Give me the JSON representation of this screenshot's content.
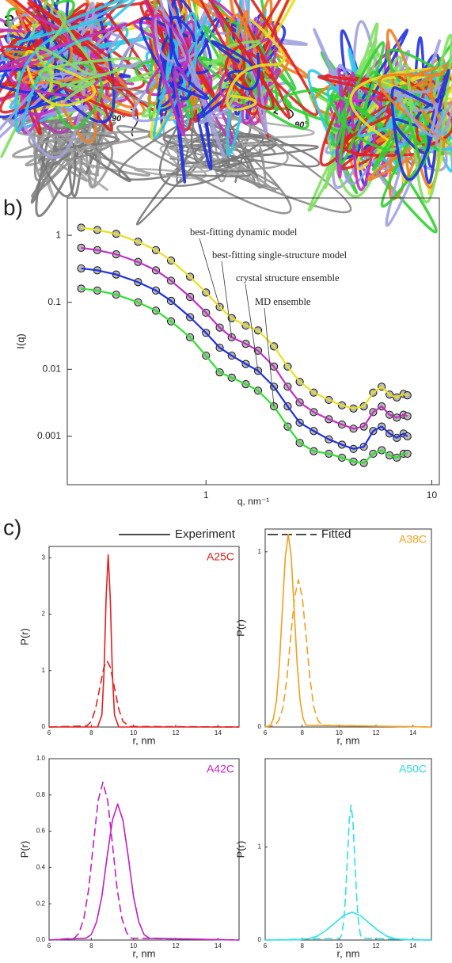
{
  "panel_labels": [
    "a)",
    "b)",
    "c)"
  ],
  "panel_a": {
    "rotation_labels": [
      "90°",
      "90°"
    ]
  },
  "panel_c_legend": [
    {
      "label": "Experiment",
      "style": "solid"
    },
    {
      "label": "Fitted",
      "style": "dashed"
    }
  ],
  "chart_data": [
    {
      "type": "line",
      "log_x": true,
      "log_y": true,
      "markers": true,
      "x_label": "q, nm⁻¹",
      "y_label": "I(q)",
      "xlim": [
        0.243,
        10.8
      ],
      "ylim": [
        0.00019,
        3.6
      ],
      "xticks": [
        1,
        10
      ],
      "yticks": [
        0.001,
        0.01,
        0.1,
        1
      ],
      "x": [
        0.28,
        0.33,
        0.4,
        0.5,
        0.6,
        0.7,
        0.85,
        1.0,
        1.15,
        1.3,
        1.5,
        1.7,
        2.0,
        2.3,
        2.6,
        3.0,
        3.5,
        4.0,
        4.5,
        5.0,
        5.5,
        6.0,
        6.5,
        7.0,
        7.5,
        7.8
      ],
      "series": [
        {
          "name": "best-fitting dynamic model",
          "color": "#e8e020",
          "values": [
            1.3,
            1.2,
            1.05,
            0.8,
            0.6,
            0.42,
            0.24,
            0.14,
            0.085,
            0.058,
            0.045,
            0.038,
            0.022,
            0.011,
            0.0065,
            0.0045,
            0.0035,
            0.0029,
            0.0026,
            0.0028,
            0.0045,
            0.0055,
            0.0042,
            0.0038,
            0.0043,
            0.0041
          ]
        },
        {
          "name": "best-fitting single-structure model",
          "color": "#c030c0",
          "values": [
            0.65,
            0.6,
            0.52,
            0.4,
            0.3,
            0.21,
            0.12,
            0.07,
            0.042,
            0.03,
            0.024,
            0.019,
            0.011,
            0.0055,
            0.0032,
            0.0023,
            0.0018,
            0.0015,
            0.0013,
            0.0014,
            0.0023,
            0.0028,
            0.0021,
            0.0019,
            0.0021,
            0.002
          ]
        },
        {
          "name": "crystal structure ensemble",
          "color": "#2030e0",
          "values": [
            0.32,
            0.3,
            0.26,
            0.2,
            0.15,
            0.105,
            0.06,
            0.035,
            0.021,
            0.016,
            0.012,
            0.0095,
            0.0055,
            0.0028,
            0.0016,
            0.0012,
            0.0009,
            0.00075,
            0.00065,
            0.0007,
            0.0012,
            0.0014,
            0.0011,
            0.00095,
            0.0011,
            0.001
          ]
        },
        {
          "name": "MD ensemble",
          "color": "#30e030",
          "values": [
            0.16,
            0.15,
            0.13,
            0.1,
            0.075,
            0.052,
            0.03,
            0.016,
            0.009,
            0.0075,
            0.006,
            0.0048,
            0.0028,
            0.0014,
            0.0008,
            0.0006,
            0.00055,
            0.00048,
            0.00042,
            0.0004,
            0.00055,
            0.00062,
            0.00052,
            0.00048,
            0.00055,
            0.00055
          ]
        }
      ]
    },
    {
      "type": "line",
      "title": "A25C",
      "title_color": "#e02020",
      "x_label": "r, nm",
      "y_label": "P(r)",
      "xlim": [
        6,
        15
      ],
      "ylim": [
        0,
        3.2
      ],
      "xticks": [
        6,
        8,
        10,
        12,
        14
      ],
      "yticks": [
        0,
        1,
        2,
        3
      ],
      "series": [
        {
          "style": "solid",
          "color": "#e02020",
          "x": [
            6,
            8.3,
            8.5,
            8.6,
            8.7,
            8.8,
            8.9,
            9.0,
            9.1,
            9.3,
            15
          ],
          "values": [
            0,
            0,
            0.21,
            0.94,
            2.27,
            3.05,
            2.27,
            0.94,
            0.21,
            0,
            0
          ]
        },
        {
          "style": "dashed",
          "color": "#e02020",
          "x": [
            6,
            7.8,
            8.0,
            8.2,
            8.4,
            8.6,
            8.75,
            8.9,
            9.1,
            9.3,
            9.5,
            9.8,
            15
          ],
          "values": [
            0,
            0.02,
            0.1,
            0.32,
            0.69,
            1.06,
            1.17,
            1.06,
            0.69,
            0.32,
            0.1,
            0.01,
            0
          ]
        }
      ]
    },
    {
      "type": "line",
      "title": "A38C",
      "title_color": "#f0a020",
      "x_label": "r, nm",
      "y_label": "P(r)",
      "xlim": [
        6,
        15
      ],
      "ylim": [
        0,
        1.13
      ],
      "xticks": [
        6,
        8,
        10,
        12,
        14
      ],
      "yticks": [
        0,
        1
      ],
      "series": [
        {
          "style": "solid",
          "color": "#f0a020",
          "x": [
            6,
            6.29,
            6.45,
            6.61,
            6.77,
            6.93,
            7.09,
            7.25,
            7.41,
            7.57,
            7.73,
            7.89,
            8.05,
            8.21,
            15
          ],
          "values": [
            0,
            0.01,
            0.05,
            0.15,
            0.36,
            0.67,
            0.97,
            1.1,
            0.97,
            0.67,
            0.36,
            0.15,
            0.05,
            0.01,
            0
          ]
        },
        {
          "style": "dashed",
          "color": "#f0a020",
          "x": [
            6,
            6.54,
            6.75,
            6.96,
            7.17,
            7.38,
            7.59,
            7.8,
            8.01,
            8.22,
            8.43,
            8.64,
            8.85,
            9.06,
            15
          ],
          "values": [
            0,
            0.01,
            0.04,
            0.11,
            0.27,
            0.51,
            0.74,
            0.84,
            0.74,
            0.51,
            0.27,
            0.11,
            0.04,
            0.01,
            0
          ]
        }
      ]
    },
    {
      "type": "line",
      "title": "A42C",
      "title_color": "#c020c0",
      "x_label": "r, nm",
      "y_label": "P(r)",
      "xlim": [
        6,
        15
      ],
      "ylim": [
        0,
        1
      ],
      "xticks": [
        6,
        8,
        10,
        12,
        14
      ],
      "yticks": [
        {
          "value": 0,
          "label": "0.0"
        },
        0.2,
        0.4,
        0.6,
        0.8,
        {
          "value": 1,
          "label": "1.0"
        }
      ],
      "series": [
        {
          "style": "solid",
          "color": "#c020c0",
          "x": [
            6,
            7.75,
            8.0,
            8.25,
            8.5,
            8.75,
            9.0,
            9.25,
            9.5,
            9.75,
            10.0,
            10.25,
            10.5,
            10.75,
            15
          ],
          "values": [
            0,
            0.01,
            0.03,
            0.1,
            0.24,
            0.46,
            0.66,
            0.75,
            0.66,
            0.46,
            0.24,
            0.1,
            0.03,
            0.01,
            0
          ]
        },
        {
          "style": "dashed",
          "color": "#c020c0",
          "x": [
            6,
            7.2,
            7.425,
            7.65,
            7.875,
            8.1,
            8.325,
            8.55,
            8.775,
            9.0,
            9.225,
            9.45,
            9.675,
            9.9,
            15
          ],
          "values": [
            0,
            0.01,
            0.04,
            0.12,
            0.28,
            0.53,
            0.77,
            0.87,
            0.77,
            0.53,
            0.28,
            0.12,
            0.04,
            0.01,
            0
          ]
        }
      ]
    },
    {
      "type": "line",
      "title": "A50C",
      "title_color": "#30d8e8",
      "x_label": "r, nm",
      "y_label": "P(r)",
      "xlim": [
        6,
        15
      ],
      "ylim": [
        0,
        1.95
      ],
      "xticks": [
        6,
        8,
        10,
        12,
        14
      ],
      "yticks": [
        0,
        1
      ],
      "series": [
        {
          "style": "solid",
          "color": "#30e0e8",
          "x": [
            6,
            7.85,
            8.325,
            8.8,
            9.275,
            9.75,
            10.225,
            10.7,
            11.175,
            11.65,
            12.125,
            12.6,
            13.075,
            13.55,
            15
          ],
          "values": [
            0,
            0.003,
            0.013,
            0.04,
            0.1,
            0.18,
            0.26,
            0.3,
            0.26,
            0.18,
            0.1,
            0.04,
            0.013,
            0.003,
            0
          ]
        },
        {
          "style": "dashed",
          "color": "#30e0e8",
          "x": [
            6,
            10.05,
            10.15,
            10.25,
            10.35,
            10.45,
            10.55,
            10.65,
            10.75,
            10.85,
            10.95,
            11.05,
            11.15,
            11.25,
            15
          ],
          "values": [
            0,
            0.02,
            0.06,
            0.2,
            0.47,
            0.88,
            1.28,
            1.45,
            1.28,
            0.88,
            0.47,
            0.2,
            0.06,
            0.02,
            0
          ]
        }
      ]
    }
  ]
}
